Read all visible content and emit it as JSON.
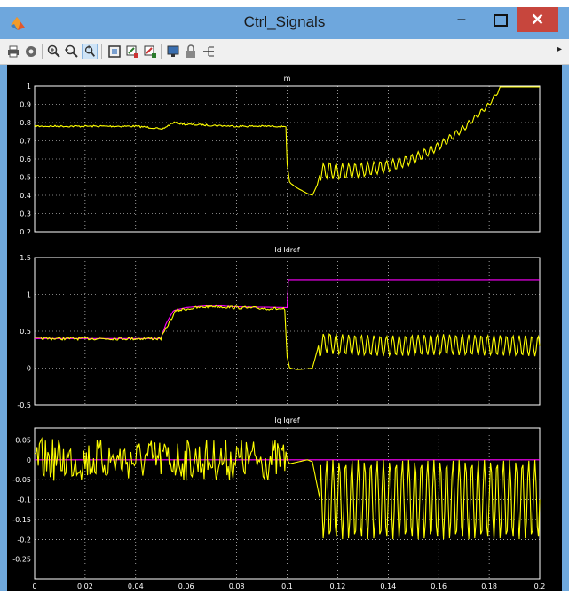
{
  "window": {
    "title": "Ctrl_Signals",
    "minimize_label": "–",
    "close_label": "✕"
  },
  "toolbar": {
    "items": [
      "print-icon",
      "settings-icon",
      "zoom-in-icon",
      "zoom-x-icon",
      "zoom-y-icon",
      "autoscale-icon",
      "save-axes-icon",
      "restore-axes-icon",
      "floating-scope-icon",
      "lock-icon",
      "signal-selector-icon"
    ],
    "menu_arrow": "▸"
  },
  "colors": {
    "signal_yellow": "#ffff00",
    "signal_magenta": "#ff00ff",
    "background": "#000000",
    "axes_text": "#ffffff",
    "titlebar": "#6ea7dd",
    "close_button": "#c7463d"
  },
  "chart_data": [
    {
      "type": "line",
      "title": "m",
      "xlim": [
        0,
        0.2
      ],
      "ylim": [
        0.2,
        1
      ],
      "yticks": [
        "0.2",
        "0.3",
        "0.4",
        "0.5",
        "0.6",
        "0.7",
        "0.8",
        "0.9",
        "1"
      ],
      "grid": true,
      "series": [
        {
          "color": "#ffff00",
          "x": [
            0,
            0.02,
            0.04,
            0.048,
            0.05,
            0.055,
            0.06,
            0.08,
            0.0998,
            0.1,
            0.101,
            0.104,
            0.108,
            0.11,
            0.112,
            0.113,
            0.116,
            0.12,
            0.13,
            0.14,
            0.15,
            0.16,
            0.17,
            0.18,
            0.185,
            0.19,
            0.2
          ],
          "y": [
            0.78,
            0.78,
            0.78,
            0.77,
            0.76,
            0.8,
            0.79,
            0.78,
            0.78,
            0.57,
            0.47,
            0.44,
            0.41,
            0.4,
            0.46,
            0.52,
            0.54,
            0.53,
            0.54,
            0.56,
            0.6,
            0.67,
            0.77,
            0.9,
            1.0,
            1.0,
            1.0
          ]
        }
      ]
    },
    {
      "type": "line",
      "title": "Id Idref",
      "xlim": [
        0,
        0.2
      ],
      "ylim": [
        -0.5,
        1.5
      ],
      "yticks": [
        "-0.5",
        "0",
        "0.5",
        "1",
        "1.5"
      ],
      "grid": true,
      "series": [
        {
          "color": "#ff00ff",
          "x": [
            0,
            0.05,
            0.052,
            0.055,
            0.06,
            0.07,
            0.08,
            0.1,
            0.1001,
            0.2
          ],
          "y": [
            0.4,
            0.4,
            0.6,
            0.78,
            0.82,
            0.85,
            0.83,
            0.82,
            1.2,
            1.2
          ]
        },
        {
          "color": "#ffff00",
          "x": [
            0,
            0.04,
            0.05,
            0.053,
            0.056,
            0.06,
            0.07,
            0.08,
            0.099,
            0.1,
            0.101,
            0.104,
            0.108,
            0.11,
            0.112,
            0.115,
            0.12,
            0.14,
            0.16,
            0.18,
            0.2
          ],
          "y": [
            0.4,
            0.4,
            0.4,
            0.6,
            0.78,
            0.8,
            0.84,
            0.82,
            0.8,
            0.15,
            0.0,
            -0.02,
            -0.01,
            0.0,
            0.25,
            0.35,
            0.32,
            0.3,
            0.32,
            0.31,
            0.3
          ]
        }
      ]
    },
    {
      "type": "line",
      "title": "Iq Iqref",
      "xlim": [
        0,
        0.2
      ],
      "ylim": [
        -0.3,
        0.08
      ],
      "yticks": [
        "-0.25",
        "-0.2",
        "-0.15",
        "-0.1",
        "-0.05",
        "0",
        "0.05"
      ],
      "xticks": [
        "0",
        "0.02",
        "0.04",
        "0.06",
        "0.08",
        "0.1",
        "0.12",
        "0.14",
        "0.16",
        "0.18",
        "0.2"
      ],
      "grid": true,
      "series": [
        {
          "color": "#ff00ff",
          "x": [
            0,
            0.2
          ],
          "y": [
            0,
            0
          ]
        },
        {
          "color": "#ffff00",
          "x": [
            0,
            0.05,
            0.1,
            0.101,
            0.108,
            0.11,
            0.113,
            0.12,
            0.2
          ],
          "y": [
            0,
            0,
            0,
            -0.01,
            0,
            -0.005,
            -0.1,
            -0.1,
            -0.1
          ]
        }
      ]
    }
  ]
}
